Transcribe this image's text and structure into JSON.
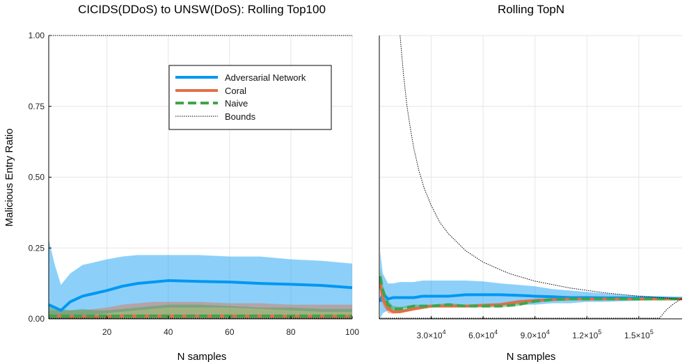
{
  "chart_data": [
    {
      "type": "line",
      "title": "CICIDS(DDoS) to UNSW(DoS): Rolling Top100",
      "xlabel": "N samples",
      "ylabel": "Malicious Entry Ratio",
      "xlim": [
        1,
        100
      ],
      "ylim": [
        0,
        1
      ],
      "x_ticks": [
        20,
        40,
        60,
        80,
        100
      ],
      "y_ticks": [
        0.0,
        0.25,
        0.5,
        0.75,
        1.0
      ],
      "y_tick_labels": [
        "0.00",
        "0.25",
        "0.50",
        "0.75",
        "1.00"
      ],
      "grid": true,
      "legend_position": "top-right",
      "legend": [
        "Adversarial Network",
        "Coral",
        "Naive",
        "Bounds"
      ],
      "x": [
        1,
        3,
        5,
        8,
        12,
        16,
        20,
        25,
        30,
        35,
        40,
        50,
        60,
        70,
        80,
        90,
        100
      ],
      "series": [
        {
          "name": "Adversarial Network",
          "color": "#0097f2",
          "values": [
            0.05,
            0.04,
            0.03,
            0.06,
            0.08,
            0.09,
            0.1,
            0.115,
            0.125,
            0.13,
            0.135,
            0.132,
            0.13,
            0.125,
            0.122,
            0.118,
            0.11
          ],
          "band_low": [
            0.0,
            0.0,
            0.0,
            0.0,
            0.01,
            0.015,
            0.02,
            0.025,
            0.03,
            0.035,
            0.04,
            0.04,
            0.04,
            0.035,
            0.03,
            0.025,
            0.025
          ],
          "band_high": [
            0.28,
            0.19,
            0.12,
            0.16,
            0.19,
            0.2,
            0.21,
            0.22,
            0.225,
            0.225,
            0.225,
            0.225,
            0.22,
            0.22,
            0.21,
            0.205,
            0.195
          ]
        },
        {
          "name": "Coral",
          "color": "#e26f46",
          "values": [
            0.01,
            0.01,
            0.01,
            0.008,
            0.008,
            0.008,
            0.009,
            0.01,
            0.01,
            0.01,
            0.01,
            0.01,
            0.01,
            0.01,
            0.009,
            0.009,
            0.009
          ],
          "band_low": [
            0,
            0,
            0,
            0,
            0,
            0,
            0,
            0,
            0,
            0,
            0,
            0,
            0,
            0,
            0,
            0,
            0
          ],
          "band_high": [
            0.03,
            0.03,
            0.03,
            0.03,
            0.03,
            0.035,
            0.04,
            0.05,
            0.055,
            0.06,
            0.06,
            0.06,
            0.055,
            0.055,
            0.05,
            0.05,
            0.05
          ]
        },
        {
          "name": "Naive",
          "color": "#3ea44e",
          "values": [
            0.01,
            0.01,
            0.01,
            0.01,
            0.01,
            0.01,
            0.01,
            0.01,
            0.01,
            0.01,
            0.01,
            0.01,
            0.01,
            0.01,
            0.01,
            0.01,
            0.01
          ],
          "band_low": [
            0,
            0,
            0,
            0,
            0,
            0,
            0,
            0,
            0,
            0,
            0,
            0,
            0,
            0,
            0,
            0,
            0
          ],
          "band_high": [
            0.05,
            0.04,
            0.035,
            0.03,
            0.035,
            0.03,
            0.03,
            0.035,
            0.04,
            0.045,
            0.05,
            0.05,
            0.045,
            0.04,
            0.04,
            0.035,
            0.035
          ]
        }
      ],
      "bounds": {
        "upper": 1.0,
        "lower": 0.0
      }
    },
    {
      "type": "line",
      "title": "Rolling TopN",
      "xlabel": "N samples",
      "xlim": [
        0,
        175000
      ],
      "ylim": [
        0,
        1
      ],
      "x_ticks": [
        30000,
        60000,
        90000,
        120000,
        150000
      ],
      "x_tick_mantissa": [
        "3.0",
        "6.0",
        "9.0",
        "1.2",
        "1.5"
      ],
      "x_tick_exponent": [
        "4",
        "4",
        "4",
        "5",
        "5"
      ],
      "grid": true,
      "x": [
        500,
        2000,
        5000,
        8000,
        12000,
        16000,
        20000,
        25000,
        30000,
        40000,
        50000,
        60000,
        70000,
        80000,
        90000,
        100000,
        110000,
        120000,
        130000,
        140000,
        150000,
        160000,
        170000,
        175000
      ],
      "series": [
        {
          "name": "Adversarial Network",
          "color": "#0097f2",
          "values": [
            0.06,
            0.09,
            0.07,
            0.075,
            0.075,
            0.075,
            0.075,
            0.08,
            0.08,
            0.08,
            0.085,
            0.085,
            0.085,
            0.083,
            0.08,
            0.078,
            0.075,
            0.075,
            0.074,
            0.074,
            0.073,
            0.073,
            0.072,
            0.072
          ],
          "band_low": [
            0.0,
            0.02,
            0.03,
            0.035,
            0.035,
            0.04,
            0.04,
            0.04,
            0.04,
            0.045,
            0.045,
            0.045,
            0.05,
            0.05,
            0.05,
            0.055,
            0.055,
            0.06,
            0.06,
            0.062,
            0.064,
            0.066,
            0.068,
            0.068
          ],
          "band_high": [
            0.24,
            0.16,
            0.125,
            0.125,
            0.13,
            0.13,
            0.13,
            0.135,
            0.135,
            0.135,
            0.135,
            0.132,
            0.125,
            0.12,
            0.115,
            0.105,
            0.1,
            0.095,
            0.09,
            0.085,
            0.082,
            0.08,
            0.078,
            0.078
          ]
        },
        {
          "name": "Coral",
          "color": "#e26f46",
          "values": [
            0.13,
            0.07,
            0.035,
            0.025,
            0.025,
            0.03,
            0.035,
            0.04,
            0.045,
            0.045,
            0.045,
            0.048,
            0.05,
            0.06,
            0.065,
            0.068,
            0.07,
            0.07,
            0.07,
            0.07,
            0.07,
            0.07,
            0.07,
            0.07
          ],
          "band_low": [
            0.1,
            0.05,
            0.02,
            0.018,
            0.02,
            0.025,
            0.03,
            0.035,
            0.04,
            0.04,
            0.04,
            0.043,
            0.045,
            0.055,
            0.06,
            0.063,
            0.065,
            0.066,
            0.066,
            0.066,
            0.066,
            0.066,
            0.066,
            0.066
          ],
          "band_high": [
            0.16,
            0.09,
            0.05,
            0.035,
            0.032,
            0.036,
            0.04,
            0.045,
            0.05,
            0.05,
            0.05,
            0.053,
            0.056,
            0.066,
            0.07,
            0.073,
            0.075,
            0.075,
            0.075,
            0.075,
            0.075,
            0.075,
            0.075,
            0.075
          ]
        },
        {
          "name": "Naive",
          "color": "#3ea44e",
          "values": [
            0.15,
            0.1,
            0.05,
            0.035,
            0.035,
            0.04,
            0.045,
            0.045,
            0.045,
            0.05,
            0.045,
            0.045,
            0.045,
            0.05,
            0.062,
            0.068,
            0.07,
            0.07,
            0.07,
            0.07,
            0.07,
            0.07,
            0.07,
            0.07
          ],
          "band_low": [
            0.12,
            0.08,
            0.035,
            0.025,
            0.028,
            0.034,
            0.04,
            0.04,
            0.04,
            0.045,
            0.04,
            0.04,
            0.04,
            0.045,
            0.057,
            0.063,
            0.065,
            0.066,
            0.066,
            0.066,
            0.066,
            0.066,
            0.066,
            0.066
          ],
          "band_high": [
            0.18,
            0.12,
            0.065,
            0.045,
            0.042,
            0.046,
            0.05,
            0.05,
            0.05,
            0.055,
            0.05,
            0.05,
            0.05,
            0.055,
            0.067,
            0.073,
            0.075,
            0.075,
            0.075,
            0.075,
            0.075,
            0.075,
            0.075,
            0.075
          ]
        }
      ],
      "bounds": {
        "upper_x": [
          12000,
          14000,
          16000,
          18000,
          20000,
          23000,
          26000,
          30000,
          35000,
          40000,
          50000,
          60000,
          75000,
          90000,
          110000,
          130000,
          150000,
          175000
        ],
        "upper_y": [
          1.0,
          0.86,
          0.75,
          0.67,
          0.6,
          0.52,
          0.46,
          0.4,
          0.34,
          0.3,
          0.24,
          0.2,
          0.16,
          0.133,
          0.109,
          0.092,
          0.08,
          0.069
        ],
        "lower_x": [
          0,
          162000,
          166000,
          170000,
          175000
        ],
        "lower_y": [
          0.0,
          0.0,
          0.03,
          0.05,
          0.07
        ]
      }
    }
  ]
}
